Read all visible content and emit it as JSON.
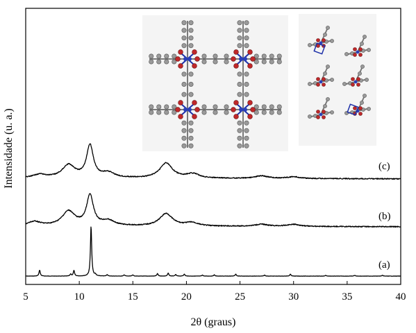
{
  "chart_data": {
    "type": "line",
    "xlabel": "2θ (graus)",
    "ylabel": "Intensidade (u. a.)",
    "xlim": [
      5,
      40
    ],
    "xticks": [
      5,
      10,
      15,
      20,
      25,
      30,
      35,
      40
    ],
    "grid": false,
    "series": [
      {
        "name": "(a)",
        "peaks": [
          {
            "x": 6.3,
            "y": 0.12
          },
          {
            "x": 9.2,
            "y": 0.04
          },
          {
            "x": 9.5,
            "y": 0.11
          },
          {
            "x": 11.1,
            "y": 1.0
          },
          {
            "x": 11.5,
            "y": 0.03
          },
          {
            "x": 12.6,
            "y": 0.03
          },
          {
            "x": 14.2,
            "y": 0.025
          },
          {
            "x": 15.0,
            "y": 0.025
          },
          {
            "x": 17.3,
            "y": 0.05
          },
          {
            "x": 18.3,
            "y": 0.06
          },
          {
            "x": 19.0,
            "y": 0.03
          },
          {
            "x": 19.8,
            "y": 0.04
          },
          {
            "x": 21.5,
            "y": 0.02
          },
          {
            "x": 22.6,
            "y": 0.025
          },
          {
            "x": 24.6,
            "y": 0.04
          },
          {
            "x": 27.3,
            "y": 0.02
          },
          {
            "x": 29.7,
            "y": 0.04
          },
          {
            "x": 33.0,
            "y": 0.015
          },
          {
            "x": 35.7,
            "y": 0.015
          },
          {
            "x": 38.3,
            "y": 0.015
          }
        ]
      },
      {
        "name": "(b)",
        "peaks": [
          {
            "x": 5.8,
            "y": 0.1
          },
          {
            "x": 9.0,
            "y": 0.35
          },
          {
            "x": 11.0,
            "y": 0.72
          },
          {
            "x": 12.7,
            "y": 0.12
          },
          {
            "x": 18.1,
            "y": 0.3
          },
          {
            "x": 20.5,
            "y": 0.08
          },
          {
            "x": 27.0,
            "y": 0.05
          },
          {
            "x": 30.0,
            "y": 0.05
          }
        ]
      },
      {
        "name": "(c)",
        "peaks": [
          {
            "x": 6.3,
            "y": 0.08
          },
          {
            "x": 9.0,
            "y": 0.3
          },
          {
            "x": 11.0,
            "y": 0.75
          },
          {
            "x": 12.7,
            "y": 0.12
          },
          {
            "x": 18.1,
            "y": 0.35
          },
          {
            "x": 20.6,
            "y": 0.1
          },
          {
            "x": 27.0,
            "y": 0.06
          },
          {
            "x": 30.0,
            "y": 0.04
          }
        ]
      }
    ]
  }
}
